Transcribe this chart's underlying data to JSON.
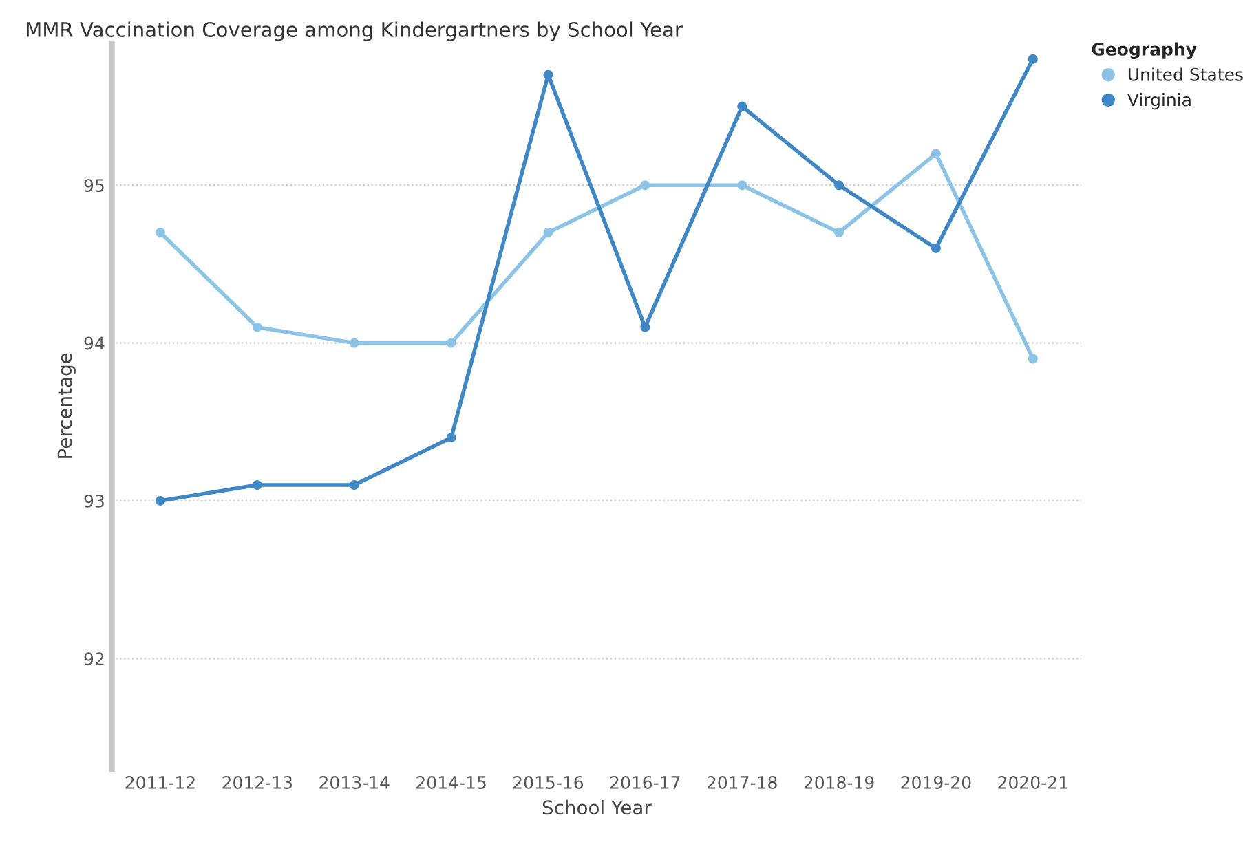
{
  "chart_data": {
    "type": "line",
    "title": "MMR Vaccination Coverage among Kindergartners by School Year",
    "xlabel": "School Year",
    "ylabel": "Percentage",
    "legend_title": "Geography",
    "categories": [
      "2011-12",
      "2012-13",
      "2013-14",
      "2014-15",
      "2015-16",
      "2016-17",
      "2017-18",
      "2018-19",
      "2019-20",
      "2020-21"
    ],
    "series": [
      {
        "name": "United States",
        "color": "#8cc4e8",
        "values": [
          94.7,
          94.1,
          94.0,
          94.0,
          94.7,
          95.0,
          95.0,
          94.7,
          95.2,
          93.9
        ]
      },
      {
        "name": "Virginia",
        "color": "#3f88c5",
        "values": [
          93.0,
          93.1,
          93.1,
          93.4,
          95.7,
          94.1,
          95.5,
          95.0,
          94.6,
          95.8
        ]
      }
    ],
    "ylim": [
      91.3,
      95.9
    ],
    "yticks": [
      92,
      93,
      94,
      95
    ],
    "grid": "y",
    "legend": "top right",
    "marker": "circle",
    "line_style": "solid"
  }
}
